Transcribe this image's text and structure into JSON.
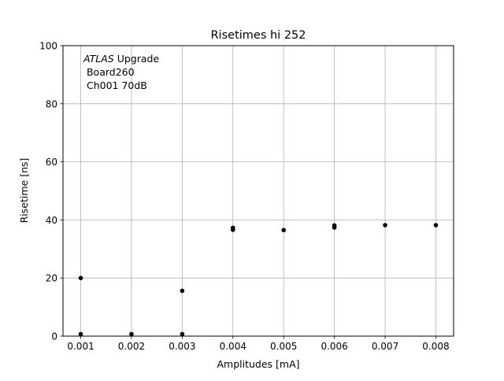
{
  "chart_data": {
    "type": "scatter",
    "title": "Risetimes hi 252",
    "xlabel": "Amplitudes [mA]",
    "ylabel": "Risetime [ns]",
    "xlim": [
      0.00065,
      0.00835
    ],
    "ylim": [
      0,
      100
    ],
    "grid": true,
    "xticks": [
      0.001,
      0.002,
      0.003,
      0.004,
      0.005,
      0.006,
      0.007,
      0.008
    ],
    "xtick_labels": [
      "0.001",
      "0.002",
      "0.003",
      "0.004",
      "0.005",
      "0.006",
      "0.007",
      "0.008"
    ],
    "yticks": [
      0,
      20,
      40,
      60,
      80,
      100
    ],
    "ytick_labels": [
      "0",
      "20",
      "40",
      "60",
      "80",
      "100"
    ],
    "marker_color": "#000000",
    "grid_color": "#b0b0b0",
    "annotation": {
      "italic": "ATLAS",
      "line1_rest": " Upgrade",
      "line2": " Board260",
      "line3": " Ch001 70dB"
    },
    "points": [
      {
        "x": 0.001,
        "y": 20.0
      },
      {
        "x": 0.001,
        "y": 0.7
      },
      {
        "x": 0.002,
        "y": 0.7
      },
      {
        "x": 0.003,
        "y": 0.7
      },
      {
        "x": 0.003,
        "y": 15.6
      },
      {
        "x": 0.004,
        "y": 37.3
      },
      {
        "x": 0.004,
        "y": 36.6
      },
      {
        "x": 0.005,
        "y": 36.5
      },
      {
        "x": 0.006,
        "y": 38.1
      },
      {
        "x": 0.006,
        "y": 37.4
      },
      {
        "x": 0.007,
        "y": 38.2
      },
      {
        "x": 0.008,
        "y": 38.2
      }
    ]
  }
}
